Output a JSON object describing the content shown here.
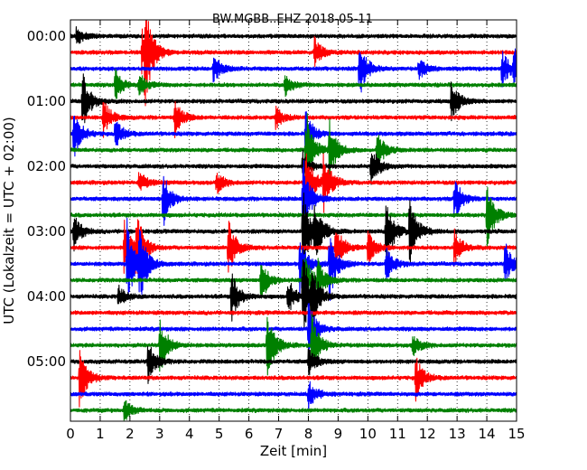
{
  "chart_data": {
    "type": "line",
    "title": "BW.MGBB..EHZ 2018-05-11",
    "xlabel": "Zeit  [min]",
    "ylabel": "UTC (Lokalzeit = UTC + 02:00)",
    "xlim": [
      0,
      15
    ],
    "x_ticks": [
      "0",
      "1",
      "2",
      "3",
      "4",
      "5",
      "6",
      "7",
      "8",
      "9",
      "10",
      "11",
      "12",
      "13",
      "14",
      "15"
    ],
    "y_ticks": [
      "00:00",
      "01:00",
      "02:00",
      "03:00",
      "04:00",
      "05:00"
    ],
    "grid": "vertical dotted lines at each minute",
    "trace_interval_minutes": 15,
    "trace_colors": [
      "#000000",
      "#ff0000",
      "#0000ff",
      "#008000"
    ],
    "traces": [
      {
        "start": "00:00",
        "events": [
          [
            0.2,
            0.25
          ]
        ]
      },
      {
        "start": "00:15",
        "events": [
          [
            2.5,
            1.0
          ],
          [
            2.4,
            0.7
          ],
          [
            8.2,
            0.4
          ]
        ]
      },
      {
        "start": "00:30",
        "events": [
          [
            4.8,
            0.4
          ],
          [
            9.7,
            0.8
          ],
          [
            14.5,
            0.5
          ],
          [
            14.9,
            0.6
          ],
          [
            11.7,
            0.3
          ]
        ]
      },
      {
        "start": "00:45",
        "events": [
          [
            1.5,
            0.4
          ],
          [
            2.3,
            0.3
          ],
          [
            7.2,
            0.3
          ]
        ]
      },
      {
        "start": "01:00",
        "events": [
          [
            0.4,
            0.8
          ],
          [
            12.8,
            0.6
          ]
        ]
      },
      {
        "start": "01:15",
        "events": [
          [
            1.1,
            0.5
          ],
          [
            3.5,
            0.5
          ],
          [
            6.9,
            0.3
          ]
        ]
      },
      {
        "start": "01:30",
        "events": [
          [
            0.1,
            0.7
          ],
          [
            1.5,
            0.4
          ],
          [
            7.9,
            0.6
          ]
        ]
      },
      {
        "start": "01:45",
        "events": [
          [
            7.9,
            1.2
          ],
          [
            8.7,
            0.8
          ],
          [
            10.3,
            0.5
          ]
        ]
      },
      {
        "start": "02:00",
        "events": [
          [
            10.1,
            0.6
          ],
          [
            7.8,
            0.4
          ]
        ]
      },
      {
        "start": "02:15",
        "events": [
          [
            7.9,
            1.0
          ],
          [
            8.5,
            0.8
          ],
          [
            2.3,
            0.3
          ],
          [
            4.9,
            0.3
          ]
        ]
      },
      {
        "start": "02:30",
        "events": [
          [
            3.1,
            0.8
          ],
          [
            7.8,
            1.2
          ],
          [
            12.9,
            0.6
          ]
        ]
      },
      {
        "start": "02:45",
        "events": [
          [
            14.0,
            0.9
          ]
        ]
      },
      {
        "start": "03:00",
        "events": [
          [
            0.1,
            0.5
          ],
          [
            7.8,
            1.2
          ],
          [
            8.2,
            0.9
          ],
          [
            10.6,
            1.0
          ],
          [
            11.4,
            1.0
          ]
        ]
      },
      {
        "start": "03:15",
        "events": [
          [
            1.8,
            0.8
          ],
          [
            2.2,
            1.0
          ],
          [
            5.3,
            0.8
          ],
          [
            8.9,
            0.7
          ],
          [
            10.0,
            0.5
          ],
          [
            12.9,
            0.5
          ]
        ]
      },
      {
        "start": "03:30",
        "events": [
          [
            1.9,
            1.2
          ],
          [
            2.3,
            1.0
          ],
          [
            7.7,
            0.8
          ],
          [
            8.7,
            1.0
          ],
          [
            10.6,
            0.5
          ],
          [
            14.6,
            0.6
          ]
        ]
      },
      {
        "start": "03:45",
        "events": [
          [
            6.4,
            0.6
          ],
          [
            7.8,
            1.0
          ],
          [
            8.3,
            0.5
          ]
        ]
      },
      {
        "start": "04:00",
        "events": [
          [
            5.4,
            0.7
          ],
          [
            7.3,
            0.5
          ],
          [
            7.8,
            1.2
          ],
          [
            8.1,
            0.6
          ],
          [
            1.6,
            0.3
          ]
        ]
      },
      {
        "start": "04:15",
        "events": []
      },
      {
        "start": "04:30",
        "events": [
          [
            8.0,
            0.8
          ]
        ]
      },
      {
        "start": "04:45",
        "events": [
          [
            3.0,
            0.8
          ],
          [
            6.6,
            1.0
          ],
          [
            8.1,
            0.9
          ],
          [
            11.5,
            0.3
          ]
        ]
      },
      {
        "start": "05:00",
        "events": [
          [
            2.6,
            0.6
          ],
          [
            8.0,
            0.4
          ]
        ]
      },
      {
        "start": "05:15",
        "events": [
          [
            0.3,
            0.8
          ],
          [
            11.6,
            0.6
          ]
        ]
      },
      {
        "start": "05:30",
        "events": [
          [
            8.0,
            0.4
          ]
        ]
      },
      {
        "start": "05:45",
        "events": [
          [
            1.8,
            0.3
          ]
        ]
      }
    ]
  }
}
